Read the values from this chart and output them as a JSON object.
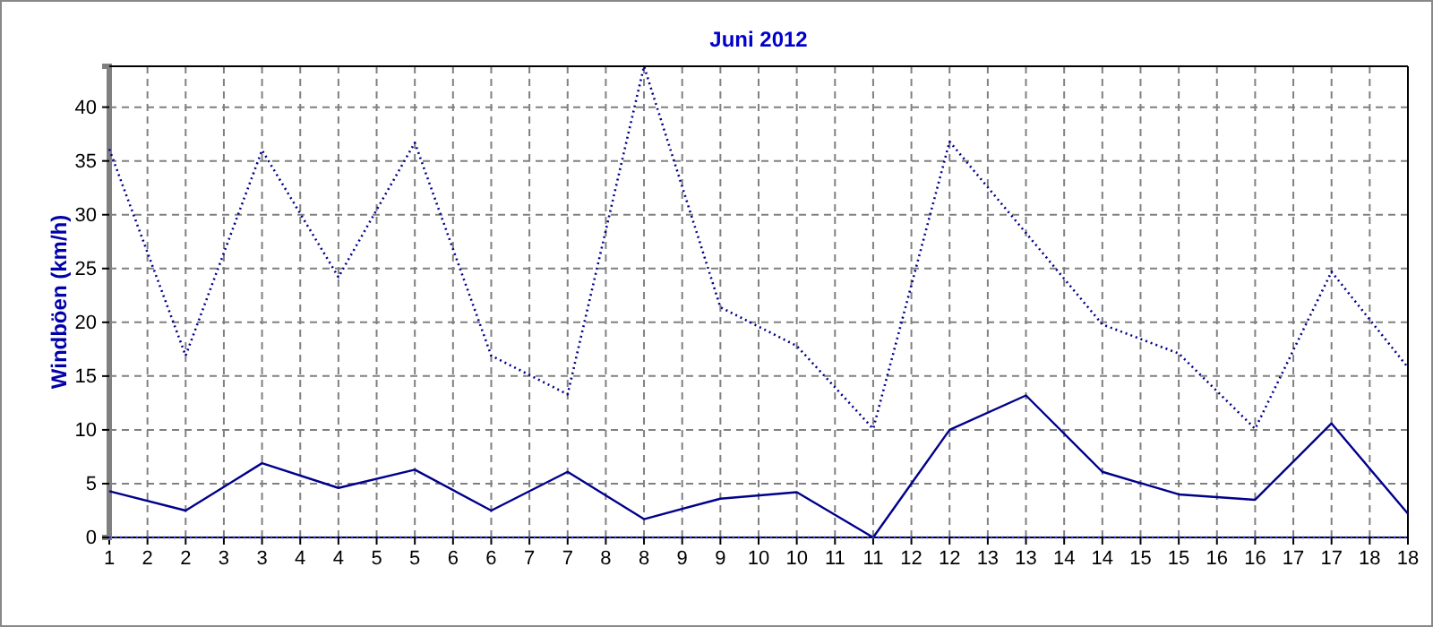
{
  "chart_data": {
    "type": "line",
    "title": "Juni 2012",
    "ylabel": "Windböen  (km/h)",
    "x": [
      1,
      2,
      3,
      4,
      5,
      6,
      7,
      8,
      9,
      10,
      11,
      12,
      13,
      14,
      15,
      16,
      17,
      18
    ],
    "series": [
      {
        "color": "#00008b",
        "line_style": "dotted",
        "values": [
          36.1,
          16.9,
          36,
          24.2,
          36.7,
          16.9,
          13.3,
          43.8,
          21.4,
          17.8,
          10.1,
          36.8,
          28.3,
          19.8,
          17.1,
          10.1,
          24.7,
          15.8
        ]
      },
      {
        "color": "#00008b",
        "line_style": "solid",
        "values": [
          4.3,
          2.5,
          6.9,
          4.6,
          6.3,
          2.5,
          6.1,
          1.7,
          3.6,
          4.2,
          0,
          10,
          13.2,
          6.1,
          4,
          3.5,
          10.6,
          2.2
        ]
      },
      {
        "color": "#3030ff",
        "line_style": "dotted",
        "values": [
          0,
          0,
          0,
          0,
          0,
          0,
          0,
          0,
          0,
          0,
          0,
          0,
          0,
          0,
          0,
          0,
          0,
          0
        ]
      }
    ],
    "xlim": [
      1,
      18
    ],
    "xticks": [
      1,
      {
        "value": 1.5,
        "label": "2"
      },
      2,
      {
        "value": 2.5,
        "label": "3"
      },
      3,
      {
        "value": 3.5,
        "label": "4"
      },
      4,
      {
        "value": 4.5,
        "label": "5"
      },
      5,
      {
        "value": 5.5,
        "label": "6"
      },
      6,
      {
        "value": 6.5,
        "label": "7"
      },
      7,
      {
        "value": 7.5,
        "label": "8"
      },
      8,
      {
        "value": 8.5,
        "label": "9"
      },
      9,
      {
        "value": 9.5,
        "label": "10"
      },
      10,
      {
        "value": 10.5,
        "label": "11"
      },
      11,
      {
        "value": 11.5,
        "label": "12"
      },
      12,
      {
        "value": 12.5,
        "label": "13"
      },
      13,
      {
        "value": 13.5,
        "label": "14"
      },
      14,
      {
        "value": 14.5,
        "label": "15"
      },
      15,
      {
        "value": 15.5,
        "label": "16"
      },
      16,
      {
        "value": 16.5,
        "label": "17"
      },
      17,
      {
        "value": 17.5,
        "label": "18"
      },
      18
    ],
    "ylim": [
      0,
      43.8
    ],
    "yticks": [
      0,
      5,
      10,
      15,
      20,
      25,
      30,
      35,
      40
    ],
    "grid": true,
    "marker": "none"
  }
}
